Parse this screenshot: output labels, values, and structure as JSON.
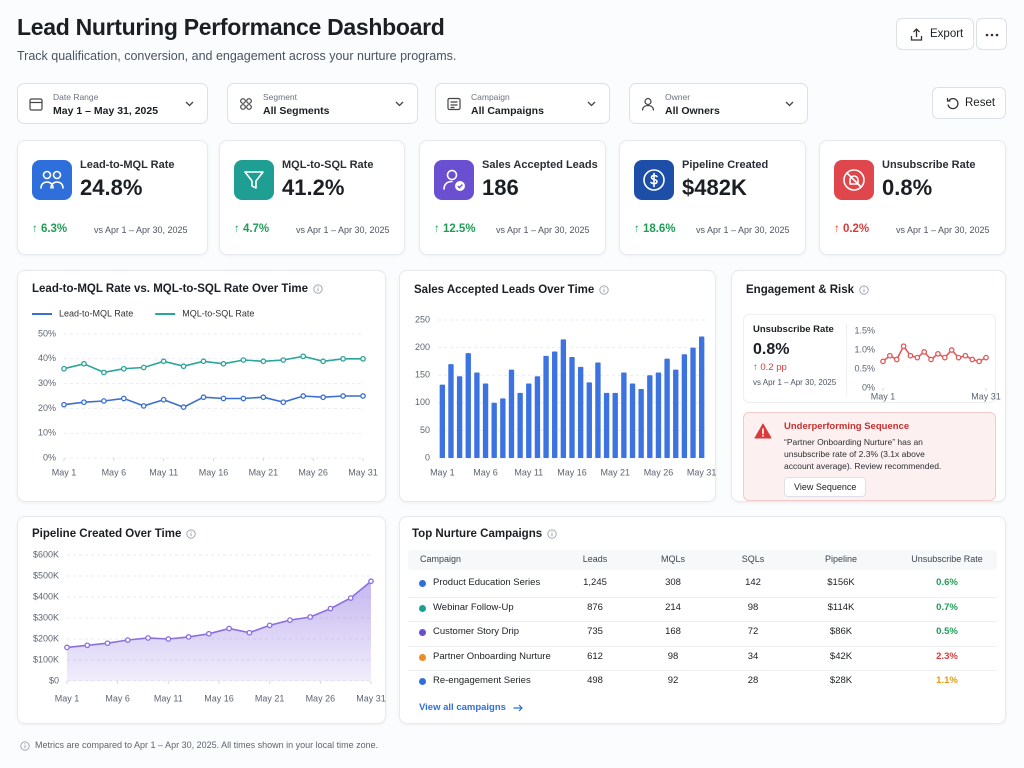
{
  "header": {
    "title": "Lead Nurturing Performance Dashboard",
    "subtitle": "Track qualification, conversion, and engagement across your nurture programs.",
    "export": "Export"
  },
  "filters": [
    {
      "label": "Date Range",
      "value": "May 1 – May 31, 2025"
    },
    {
      "label": "Segment",
      "value": "All Segments"
    },
    {
      "label": "Campaign",
      "value": "All Campaigns"
    },
    {
      "label": "Owner",
      "value": "All Owners"
    }
  ],
  "reset": "Reset",
  "kpis": [
    {
      "label": "Lead-to-MQL Rate",
      "value": "24.8%",
      "change": "↑ 6.3%",
      "compare": "vs Apr 1 – Apr 30, 2025",
      "icon_color": "#2f6fdb",
      "change_color": "#1f9d55"
    },
    {
      "label": "MQL-to-SQL Rate",
      "value": "41.2%",
      "change": "↑ 4.7%",
      "compare": "vs Apr 1 – Apr 30, 2025",
      "icon_color": "#1f9f93",
      "change_color": "#1f9d55"
    },
    {
      "label": "Sales Accepted Leads",
      "value": "186",
      "change": "↑ 12.5%",
      "compare": "vs Apr 1 – Apr 30, 2025",
      "icon_color": "#6b4fd1",
      "change_color": "#1f9d55"
    },
    {
      "label": "Pipeline Created",
      "value": "$482K",
      "change": "↑ 18.6%",
      "compare": "vs Apr 1 – Apr 30, 2025",
      "icon_color": "#1d4fa8",
      "change_color": "#1f9d55"
    },
    {
      "label": "Unsubscribe Rate",
      "value": "0.8%",
      "change": "↑ 0.2%",
      "compare": "vs Apr 1 – Apr 30, 2025",
      "icon_color": "#e0474c",
      "change_color": "#d93b3b"
    }
  ],
  "chart_data": [
    {
      "type": "line",
      "title": "Lead-to-MQL Rate vs. MQL-to-SQL Rate Over Time",
      "legend": "top-left",
      "grid": true,
      "x": [
        1,
        3,
        5,
        7,
        9,
        11,
        13,
        15,
        17,
        19,
        21,
        23,
        25,
        27,
        29,
        31
      ],
      "xlim": [
        1,
        31
      ],
      "xticks": [
        {
          "value": 1,
          "label": "May 1"
        },
        {
          "value": 6,
          "label": "May 6"
        },
        {
          "value": 11,
          "label": "May 11"
        },
        {
          "value": 16,
          "label": "May 16"
        },
        {
          "value": 21,
          "label": "May 21"
        },
        {
          "value": 26,
          "label": "May 26"
        },
        {
          "value": 31,
          "label": "May 31"
        }
      ],
      "ylim": [
        0,
        50
      ],
      "yticks": [
        {
          "value": 0,
          "label": "0%"
        },
        {
          "value": 10,
          "label": "10%"
        },
        {
          "value": 20,
          "label": "20%"
        },
        {
          "value": 30,
          "label": "30%"
        },
        {
          "value": 40,
          "label": "40%"
        },
        {
          "value": 50,
          "label": "50%"
        }
      ],
      "series": [
        {
          "name": "Lead-to-MQL Rate",
          "color": "#3b6fd4",
          "values": [
            21.5,
            22.5,
            23,
            24,
            21,
            23.5,
            20.5,
            24.5,
            24,
            24,
            24.5,
            22.5,
            25,
            24.5,
            25,
            25
          ]
        },
        {
          "name": "MQL-to-SQL Rate",
          "color": "#2aa59a",
          "values": [
            36,
            38,
            34.5,
            36,
            36.5,
            39,
            37,
            39,
            38,
            39.5,
            39,
            39.5,
            41,
            39,
            40,
            40
          ]
        }
      ]
    },
    {
      "type": "bar",
      "title": "Sales Accepted Leads Over Time",
      "grid": true,
      "color": "#3d73e0",
      "categories": [
        "May 1",
        null,
        null,
        null,
        null,
        "May 6",
        null,
        null,
        null,
        null,
        "May 11",
        null,
        null,
        null,
        null,
        "May 16",
        null,
        null,
        null,
        null,
        "May 21",
        null,
        null,
        null,
        null,
        "May 26",
        null,
        null,
        null,
        null,
        "May 31"
      ],
      "values": [
        133,
        170,
        148,
        190,
        155,
        135,
        100,
        108,
        160,
        118,
        135,
        148,
        185,
        193,
        215,
        183,
        165,
        137,
        173,
        118,
        118,
        155,
        135,
        125,
        150,
        155,
        180,
        160,
        188,
        200,
        220
      ],
      "ylim": [
        0,
        250
      ],
      "yticks": [
        0,
        50,
        100,
        150,
        200,
        250
      ]
    },
    {
      "type": "line",
      "grid": false,
      "x": [
        1,
        3,
        5,
        7,
        9,
        11,
        13,
        15,
        17,
        19,
        21,
        23,
        25,
        27,
        29,
        31
      ],
      "xlim": [
        1,
        31
      ],
      "xticks": [
        {
          "value": 1,
          "label": "May 1"
        },
        {
          "value": 31,
          "label": "May 31"
        }
      ],
      "ylim": [
        0,
        1.5
      ],
      "yticks": [
        {
          "value": 0,
          "label": "0%"
        },
        {
          "value": 0.5,
          "label": "0.5%"
        },
        {
          "value": 1,
          "label": "1.0%"
        },
        {
          "value": 1.5,
          "label": "1.5%"
        }
      ],
      "series": [
        {
          "color": "#e05a5a",
          "values": [
            0.7,
            0.85,
            0.75,
            1.1,
            0.85,
            0.8,
            0.95,
            0.75,
            0.9,
            0.8,
            1.0,
            0.8,
            0.85,
            0.75,
            0.7,
            0.8
          ]
        }
      ]
    },
    {
      "type": "area",
      "title": "Pipeline Created Over Time",
      "grid": true,
      "x": [
        1,
        3,
        5,
        7,
        9,
        11,
        13,
        15,
        17,
        19,
        21,
        23,
        25,
        27,
        29,
        31
      ],
      "xlim": [
        1,
        31
      ],
      "xticks": [
        {
          "value": 1,
          "label": "May 1"
        },
        {
          "value": 6,
          "label": "May 6"
        },
        {
          "value": 11,
          "label": "May 11"
        },
        {
          "value": 16,
          "label": "May 16"
        },
        {
          "value": 21,
          "label": "May 21"
        },
        {
          "value": 26,
          "label": "May 26"
        },
        {
          "value": 31,
          "label": "May 31"
        }
      ],
      "ylim": [
        0,
        600000
      ],
      "yticks": [
        {
          "value": 0,
          "label": "$0"
        },
        {
          "value": 100000,
          "label": "$100K"
        },
        {
          "value": 200000,
          "label": "$200K"
        },
        {
          "value": 300000,
          "label": "$300K"
        },
        {
          "value": 400000,
          "label": "$400K"
        },
        {
          "value": 500000,
          "label": "$500K"
        },
        {
          "value": 600000,
          "label": "$600K"
        }
      ],
      "series": [
        {
          "color": "#8b6fe0",
          "values": [
            160000,
            170000,
            180000,
            195000,
            205000,
            200000,
            210000,
            225000,
            250000,
            230000,
            265000,
            290000,
            305000,
            345000,
            395000,
            475000
          ]
        }
      ]
    }
  ],
  "engagement": {
    "title": "Engagement & Risk",
    "metric_label": "Unsubscribe Rate",
    "metric_value": "0.8%",
    "change": "↑ 0.2 pp",
    "compare": "vs Apr 1 – Apr 30, 2025",
    "alert": {
      "title": "Underperforming Sequence",
      "text": "“Partner Onboarding Nurture” has an unsubscribe rate of 2.3% (3.1x above account average). Review recommended.",
      "button": "View Sequence"
    }
  },
  "table": {
    "title": "Top Nurture Campaigns",
    "columns": [
      "Campaign",
      "Leads",
      "MQLs",
      "SQLs",
      "Pipeline",
      "Unsubscribe Rate"
    ],
    "rows": [
      {
        "cells": [
          "Product Education Series",
          "1,245",
          "308",
          "142",
          "$156K",
          "0.6%"
        ],
        "dot": "#2f6fdb",
        "rate_color": "#1f9d55"
      },
      {
        "cells": [
          "Webinar Follow-Up",
          "876",
          "214",
          "98",
          "$114K",
          "0.7%"
        ],
        "dot": "#1f9f93",
        "rate_color": "#1f9d55"
      },
      {
        "cells": [
          "Customer Story Drip",
          "735",
          "168",
          "72",
          "$86K",
          "0.5%"
        ],
        "dot": "#6b4fd1",
        "rate_color": "#1f9d55"
      },
      {
        "cells": [
          "Partner Onboarding Nurture",
          "612",
          "98",
          "34",
          "$42K",
          "2.3%"
        ],
        "dot": "#f08a24",
        "rate_color": "#d93b3b"
      },
      {
        "cells": [
          "Re-engagement Series",
          "498",
          "92",
          "28",
          "$28K",
          "1.1%"
        ],
        "dot": "#2f6fdb",
        "rate_color": "#e39b16"
      }
    ],
    "link": "View all campaigns"
  },
  "footer": "Metrics are compared to Apr 1 – Apr 30, 2025. All times shown in your local time zone."
}
